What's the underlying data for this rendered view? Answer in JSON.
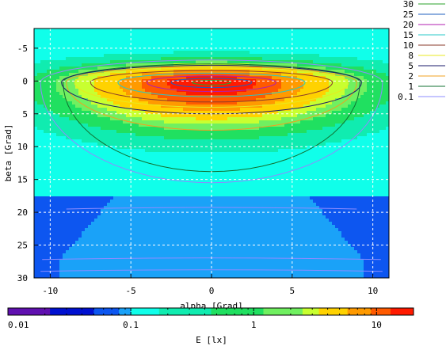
{
  "chart_data": {
    "type": "heatmap",
    "xlabel": "alpha [Grad]",
    "ylabel": "beta [Grad]",
    "colorbar_label": "E [lx]",
    "xlim": [
      -11,
      11
    ],
    "ylim": [
      30,
      -8
    ],
    "x_ticks": [
      -10,
      -5,
      0,
      5,
      10
    ],
    "y_ticks": [
      -5,
      0,
      5,
      10,
      15,
      20,
      25,
      30
    ],
    "grid": true,
    "colorbar_ticks": [
      {
        "label": "0.01",
        "value": 0.01
      },
      {
        "label": "0.1",
        "value": 0.1
      },
      {
        "label": "1",
        "value": 1
      },
      {
        "label": "10",
        "value": 10
      }
    ],
    "colorbar_range": [
      0.01,
      20
    ],
    "colorbar_scale": "log",
    "contour_levels": [
      {
        "label": "30",
        "color": "#2aa02a"
      },
      {
        "label": "25",
        "color": "#1f5fbf"
      },
      {
        "label": "20",
        "color": "#b01fb0"
      },
      {
        "label": "15",
        "color": "#28c8c8"
      },
      {
        "label": "10",
        "color": "#8a3a2a"
      },
      {
        "label": "8",
        "color": "#e8e820"
      },
      {
        "label": "5",
        "color": "#1a1a6a"
      },
      {
        "label": "2",
        "color": "#f0a020"
      },
      {
        "label": "1",
        "color": "#107030"
      },
      {
        "label": "0.1",
        "color": "#8c8cff"
      }
    ],
    "colors": {
      "red": "#ff1a00",
      "orange_red": "#ff5a00",
      "orange": "#ff9a00",
      "yellow": "#ffd200",
      "yellow_green": "#c8ff30",
      "light_green": "#70f060",
      "green": "#20e060",
      "aqua_green": "#10ecb0",
      "cyan": "#10ffea",
      "light_blue": "#1aa2f8",
      "blue": "#0d56f0",
      "dark_blue": "#0010d0",
      "purple": "#6010b0"
    }
  }
}
